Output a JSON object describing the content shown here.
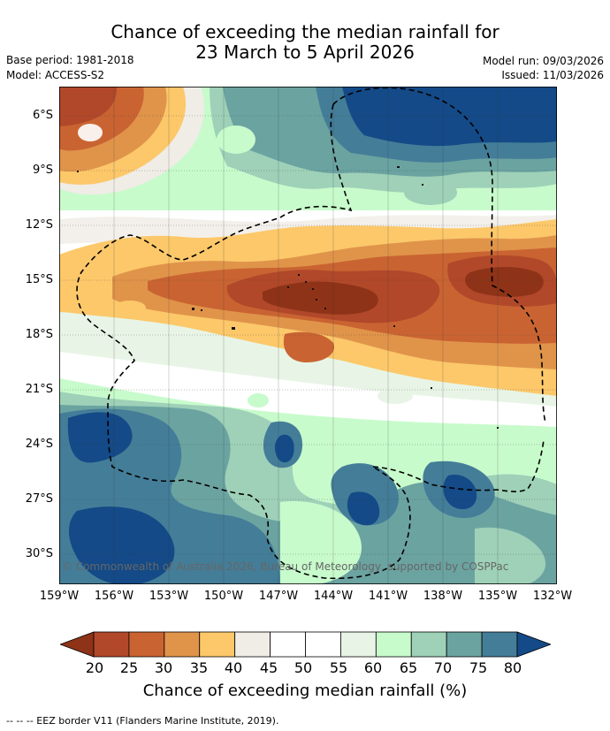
{
  "header": {
    "title_line1": "Chance of exceeding the median rainfall for",
    "title_line2": "23 March to 5 April 2026",
    "base_period": "Base period: 1981-2018",
    "model": "Model: ACCESS-S2",
    "model_run": "Model run: 09/03/2026",
    "issued": "Issued: 11/03/2026"
  },
  "map": {
    "lat_ticks": [
      "6°S",
      "9°S",
      "12°S",
      "15°S",
      "18°S",
      "21°S",
      "24°S",
      "27°S",
      "30°S"
    ],
    "lon_ticks": [
      "159°W",
      "156°W",
      "153°W",
      "150°W",
      "147°W",
      "144°W",
      "141°W",
      "138°W",
      "135°W",
      "132°W"
    ],
    "copyright": "© Commonwealth of Australia 2026, Bureau of Meteorology, supported by COSPPac"
  },
  "colorbar": {
    "title": "Chance of exceeding median rainfall (%)",
    "labels": [
      "20",
      "25",
      "30",
      "35",
      "40",
      "45",
      "50",
      "55",
      "60",
      "65",
      "70",
      "75",
      "80"
    ],
    "colors": [
      "#8e3318",
      "#b1482a",
      "#c96432",
      "#e0944a",
      "#fcc86a",
      "#f0ece6",
      "#ffffff",
      "#ffffff",
      "#e8f5e6",
      "#c8fbcc",
      "#9ed1b8",
      "#6ba3a1",
      "#447d98",
      "#134a87"
    ]
  },
  "footer": {
    "eez_note": "--  --  -- EEZ border V11 (Flanders Marine Institute, 2019)."
  }
}
